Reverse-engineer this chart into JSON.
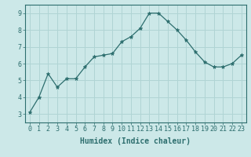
{
  "x": [
    0,
    1,
    2,
    3,
    4,
    5,
    6,
    7,
    8,
    9,
    10,
    11,
    12,
    13,
    14,
    15,
    16,
    17,
    18,
    19,
    20,
    21,
    22,
    23
  ],
  "y": [
    3.1,
    4.0,
    5.4,
    4.6,
    5.1,
    5.1,
    5.8,
    6.4,
    6.5,
    6.6,
    7.3,
    7.6,
    8.1,
    9.0,
    9.0,
    8.5,
    8.0,
    7.4,
    6.7,
    6.1,
    5.8,
    5.8,
    6.0,
    6.5
  ],
  "xlabel": "Humidex (Indice chaleur)",
  "xlim": [
    -0.5,
    23.5
  ],
  "ylim": [
    2.5,
    9.5
  ],
  "yticks": [
    3,
    4,
    5,
    6,
    7,
    8,
    9
  ],
  "xticks": [
    0,
    1,
    2,
    3,
    4,
    5,
    6,
    7,
    8,
    9,
    10,
    11,
    12,
    13,
    14,
    15,
    16,
    17,
    18,
    19,
    20,
    21,
    22,
    23
  ],
  "line_color": "#2d6e6e",
  "marker": "*",
  "marker_size": 3.5,
  "bg_color": "#cce8e8",
  "grid_color": "#b0d4d4",
  "tick_color": "#2d6e6e",
  "label_color": "#2d6e6e",
  "font_size": 6.0,
  "xlabel_fontsize": 7.0
}
